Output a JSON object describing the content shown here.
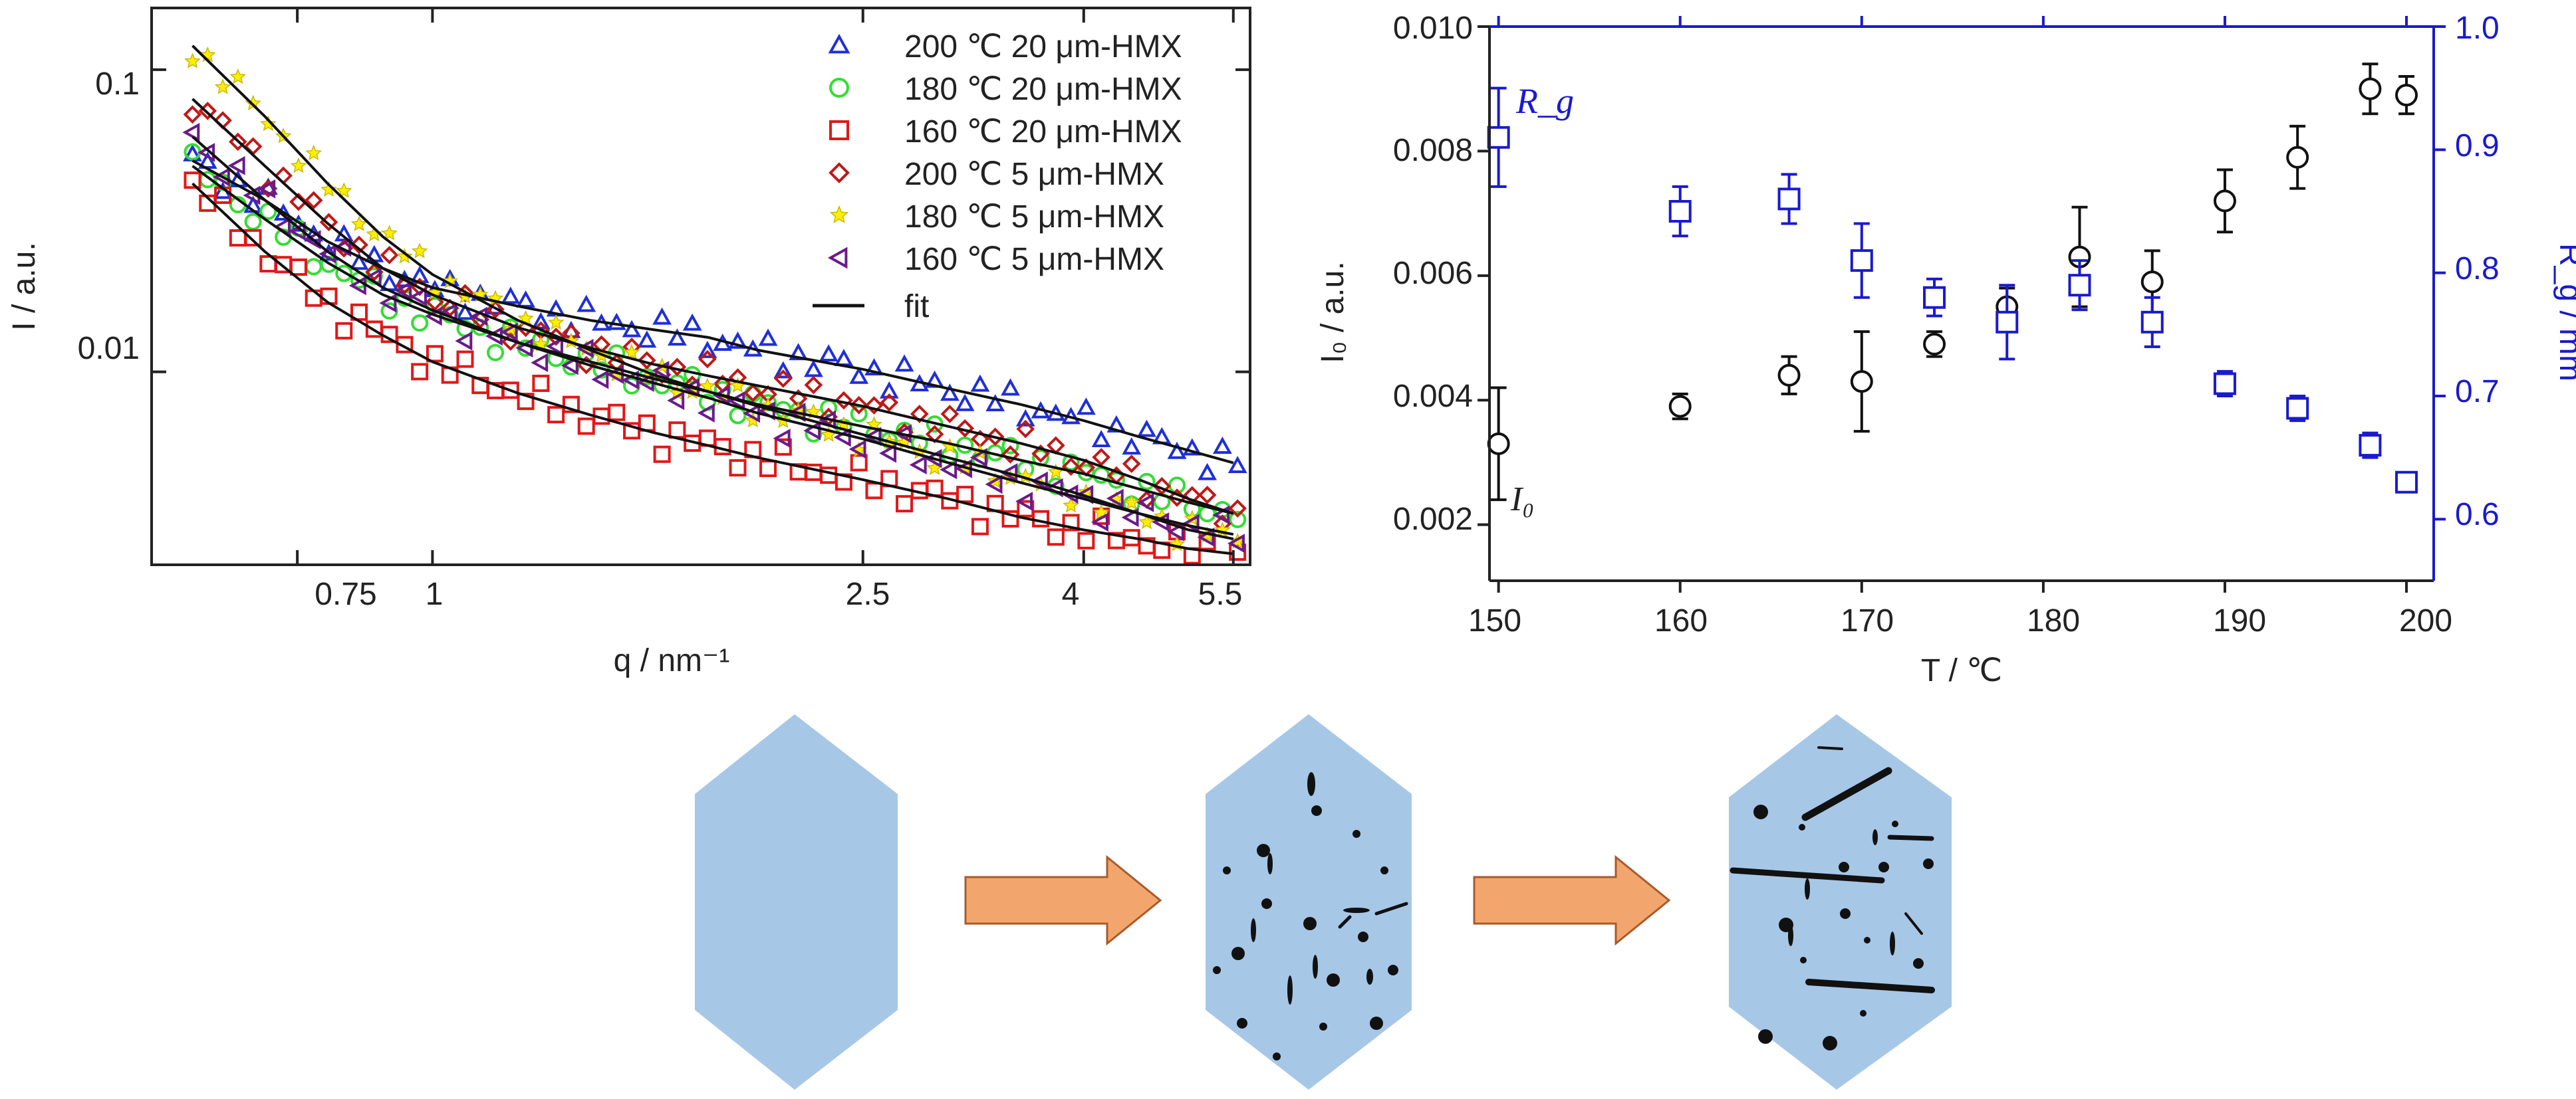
{
  "chart_data": [
    {
      "type": "scatter",
      "title": "",
      "xlabel": "q / nm⁻¹",
      "ylabel": "I / a.u.",
      "x_scale": "log",
      "y_scale": "log",
      "xlim": [
        0.55,
        5.7
      ],
      "ylim": [
        0.0023,
        0.16
      ],
      "x_tick_labels": [
        "0.75",
        "1",
        "2.5",
        "4",
        "5.5"
      ],
      "y_tick_labels": [
        "0.1",
        "0.01"
      ],
      "legend_placement": "top-right",
      "fit_label": "fit",
      "series": [
        {
          "name": "200 ℃ 20 μm-HMX",
          "marker": "triangle-up",
          "color": "#1f2fd8",
          "x": [
            0.6,
            0.7,
            0.8,
            0.9,
            1.0,
            1.2,
            1.4,
            1.6,
            1.8,
            2.0,
            2.5,
            3.0,
            3.5,
            4.0,
            4.5,
            5.0,
            5.5
          ],
          "y": [
            0.05,
            0.037,
            0.027,
            0.022,
            0.019,
            0.0165,
            0.0148,
            0.0138,
            0.013,
            0.0118,
            0.0102,
            0.0088,
            0.0078,
            0.0069,
            0.0061,
            0.0055,
            0.005
          ]
        },
        {
          "name": "180 ℃ 20 μm-HMX",
          "marker": "circle",
          "color": "#33dd33",
          "x": [
            0.6,
            0.7,
            0.8,
            0.9,
            1.0,
            1.2,
            1.4,
            1.6,
            1.8,
            2.0,
            2.5,
            3.0,
            3.5,
            4.0,
            4.5,
            5.0,
            5.5
          ],
          "y": [
            0.048,
            0.032,
            0.023,
            0.018,
            0.0155,
            0.0125,
            0.0108,
            0.0095,
            0.0086,
            0.0078,
            0.0066,
            0.0058,
            0.0051,
            0.0046,
            0.0041,
            0.0037,
            0.0034
          ]
        },
        {
          "name": "160 ℃ 20 μm-HMX",
          "marker": "square",
          "color": "#e01818",
          "x": [
            0.6,
            0.7,
            0.8,
            0.9,
            1.0,
            1.2,
            1.4,
            1.6,
            1.8,
            2.0,
            2.5,
            3.0,
            3.5,
            4.0,
            4.5,
            5.0,
            5.5
          ],
          "y": [
            0.042,
            0.025,
            0.017,
            0.0132,
            0.0108,
            0.0085,
            0.0072,
            0.0063,
            0.0057,
            0.0052,
            0.0044,
            0.0038,
            0.0033,
            0.003,
            0.0028,
            0.0026,
            0.0025
          ]
        },
        {
          "name": "200 ℃ 5 μm-HMX",
          "marker": "diamond",
          "color": "#c01818",
          "x": [
            0.6,
            0.7,
            0.8,
            0.9,
            1.0,
            1.2,
            1.4,
            1.6,
            1.8,
            2.0,
            2.5,
            3.0,
            3.5,
            4.0,
            4.5,
            5.0,
            5.5
          ],
          "y": [
            0.08,
            0.048,
            0.031,
            0.022,
            0.018,
            0.014,
            0.012,
            0.0106,
            0.0097,
            0.009,
            0.0077,
            0.0066,
            0.0058,
            0.0051,
            0.0044,
            0.0038,
            0.0034
          ]
        },
        {
          "name": "180 ℃ 5 μm-HMX",
          "marker": "star",
          "color": "#ffee00",
          "x": [
            0.6,
            0.7,
            0.8,
            0.9,
            1.0,
            1.2,
            1.4,
            1.6,
            1.8,
            2.0,
            2.5,
            3.0,
            3.5,
            4.0,
            4.5,
            5.0,
            5.5
          ],
          "y": [
            0.12,
            0.07,
            0.042,
            0.028,
            0.021,
            0.0148,
            0.0118,
            0.0098,
            0.0086,
            0.0077,
            0.0062,
            0.0052,
            0.0045,
            0.0039,
            0.0034,
            0.003,
            0.0028
          ]
        },
        {
          "name": "160 ℃ 5 μm-HMX",
          "marker": "triangle-left",
          "color": "#6a1a8a",
          "x": [
            0.6,
            0.7,
            0.8,
            0.9,
            1.0,
            1.2,
            1.4,
            1.6,
            1.8,
            2.0,
            2.5,
            3.0,
            3.5,
            4.0,
            4.5,
            5.0,
            5.5
          ],
          "y": [
            0.06,
            0.037,
            0.025,
            0.019,
            0.016,
            0.0125,
            0.0105,
            0.0092,
            0.0082,
            0.0073,
            0.006,
            0.005,
            0.0043,
            0.0038,
            0.0034,
            0.0031,
            0.0029
          ]
        }
      ]
    },
    {
      "type": "scatter",
      "title": "",
      "xlabel": "T / ℃",
      "ylabel_left": "I₀ / a.u.",
      "ylabel_right": "R_g / mm",
      "xlim": [
        149.5,
        201.5
      ],
      "ylim_left": [
        0.0011,
        0.01
      ],
      "ylim_right": [
        0.55,
        1.0
      ],
      "x_ticks": [
        150,
        160,
        170,
        180,
        190,
        200
      ],
      "y_left_ticks": [
        "0.002",
        "0.004",
        "0.006",
        "0.008",
        "0.010"
      ],
      "y_right_ticks": [
        "0.6",
        "0.7",
        "0.8",
        "0.9",
        "1.0"
      ],
      "right_axis_color": "#1a1acc",
      "series": [
        {
          "name": "I₀",
          "axis": "left",
          "marker": "circle",
          "color": "#111111",
          "x": [
            150,
            160,
            166,
            170,
            174,
            178,
            182,
            186,
            190,
            194,
            198,
            200
          ],
          "y": [
            0.0033,
            0.0039,
            0.0044,
            0.0043,
            0.0049,
            0.0055,
            0.0063,
            0.0059,
            0.0072,
            0.0079,
            0.009,
            0.0089
          ],
          "err": [
            0.0009,
            0.0002,
            0.0003,
            0.0008,
            0.0002,
            0.0003,
            0.0008,
            0.0005,
            0.0005,
            0.0005,
            0.0004,
            0.0003
          ]
        },
        {
          "name": "R_g",
          "axis": "right",
          "marker": "square",
          "color": "#1a1acc",
          "x": [
            150,
            160,
            166,
            170,
            174,
            178,
            182,
            186,
            190,
            194,
            198,
            200
          ],
          "y": [
            0.91,
            0.85,
            0.86,
            0.81,
            0.78,
            0.76,
            0.79,
            0.76,
            0.71,
            0.69,
            0.66,
            0.63
          ],
          "err": [
            0.04,
            0.02,
            0.02,
            0.03,
            0.015,
            0.03,
            0.02,
            0.02,
            0.01,
            0.01,
            0.01,
            0.005
          ]
        }
      ]
    }
  ]
}
